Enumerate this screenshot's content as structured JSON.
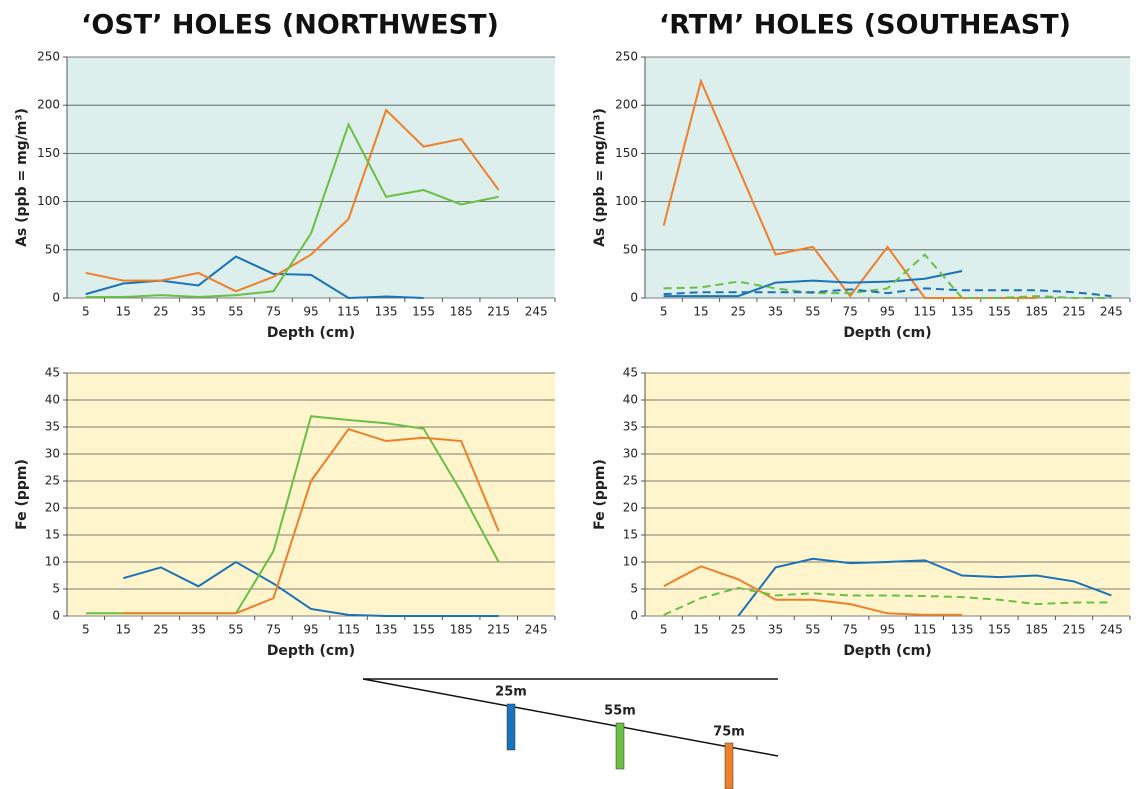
{
  "chart_data": [
    {
      "type": "line",
      "title": "‘OST’ HOLES (NORTHWEST)",
      "y_label": "As (ppb = mg/m³)",
      "x_label": "Depth (cm)",
      "background": "#dcefec",
      "grid": true,
      "categories": [
        "5",
        "15",
        "25",
        "35",
        "55",
        "75",
        "95",
        "115",
        "135",
        "155",
        "185",
        "215",
        "245"
      ],
      "ylim": [
        0,
        250
      ],
      "yticks": [
        0,
        50,
        100,
        150,
        200,
        250
      ],
      "series": [
        {
          "color": "#1a73b8",
          "values": [
            4,
            15,
            18,
            13,
            43,
            25,
            24,
            0,
            1.5,
            0,
            null,
            null,
            null
          ]
        },
        {
          "color": "#f07f2a",
          "values": [
            26,
            18,
            18,
            26,
            7,
            22,
            45,
            82,
            195,
            157,
            165,
            112,
            null
          ]
        },
        {
          "color": "#6bbf44",
          "values": [
            1,
            1,
            3,
            1,
            3,
            7,
            67,
            180,
            105,
            112,
            97,
            105,
            null
          ]
        }
      ]
    },
    {
      "type": "line",
      "title": "‘RTM’ HOLES (SOUTHEAST)",
      "y_label": "As (ppb = mg/m³)",
      "x_label": "Depth (cm)",
      "background": "#dcefec",
      "grid": true,
      "categories": [
        "5",
        "15",
        "25",
        "35",
        "55",
        "75",
        "95",
        "115",
        "135",
        "155",
        "185",
        "215",
        "245"
      ],
      "ylim": [
        0,
        250
      ],
      "yticks": [
        0,
        50,
        100,
        150,
        200,
        250
      ],
      "series": [
        {
          "color": "#f07f2a",
          "values": [
            75,
            225,
            135,
            45,
            53,
            2,
            53,
            0,
            0,
            0,
            0,
            null,
            null
          ]
        },
        {
          "color": "#1a73b8",
          "values": [
            2,
            2,
            2,
            16,
            18,
            16,
            17,
            20,
            28,
            null,
            null,
            null,
            null
          ]
        },
        {
          "color": "#6bbf44",
          "dashed": true,
          "values": [
            10,
            11,
            17,
            10,
            5,
            5,
            10,
            45,
            0,
            0,
            2,
            0,
            0
          ]
        },
        {
          "color": "#1a73b8",
          "dashed": true,
          "values": [
            4,
            6,
            6,
            6,
            6,
            9,
            5,
            10,
            8,
            8,
            8,
            6,
            2
          ]
        }
      ]
    },
    {
      "type": "line",
      "y_label": "Fe (ppm)",
      "x_label": "Depth (cm)",
      "background": "#fff5cc",
      "grid": true,
      "categories": [
        "5",
        "15",
        "25",
        "35",
        "55",
        "75",
        "95",
        "115",
        "135",
        "155",
        "185",
        "215",
        "245"
      ],
      "ylim": [
        0,
        45
      ],
      "yticks": [
        0,
        5,
        10,
        15,
        20,
        25,
        30,
        35,
        40,
        45
      ],
      "series": [
        {
          "color": "#1a73b8",
          "values": [
            null,
            7,
            9,
            5.5,
            10,
            6,
            1.3,
            0.2,
            0,
            0,
            0,
            0,
            null
          ]
        },
        {
          "color": "#6bbf44",
          "values": [
            0.5,
            0.5,
            0.5,
            0.5,
            0.5,
            12,
            37,
            36.3,
            35.7,
            34.7,
            23,
            10,
            null
          ]
        },
        {
          "color": "#f07f2a",
          "values": [
            null,
            0.5,
            0.5,
            0.5,
            0.5,
            3.3,
            25,
            34.6,
            32.4,
            33,
            32.4,
            15.7,
            null
          ]
        }
      ]
    },
    {
      "type": "line",
      "y_label": "Fe (ppm)",
      "x_label": "Depth (cm)",
      "background": "#fff5cc",
      "grid": true,
      "categories": [
        "5",
        "15",
        "25",
        "35",
        "55",
        "75",
        "95",
        "115",
        "135",
        "155",
        "185",
        "215",
        "245"
      ],
      "ylim": [
        0,
        45
      ],
      "yticks": [
        0,
        5,
        10,
        15,
        20,
        25,
        30,
        35,
        40,
        45
      ],
      "series": [
        {
          "color": "#1a73b8",
          "values": [
            null,
            null,
            0,
            9,
            10.6,
            9.8,
            10,
            10.3,
            7.5,
            7.2,
            7.5,
            6.4,
            3.8
          ]
        },
        {
          "color": "#f07f2a",
          "values": [
            5.5,
            9.2,
            6.8,
            3,
            3,
            2.2,
            0.5,
            0.2,
            0.2,
            null,
            null,
            null,
            null
          ]
        },
        {
          "color": "#6bbf44",
          "dashed": true,
          "values": [
            0.2,
            3.3,
            5.2,
            3.8,
            4.2,
            3.8,
            3.8,
            3.7,
            3.5,
            3,
            2.2,
            2.5,
            2.5
          ]
        }
      ]
    }
  ],
  "diagram": {
    "labels": [
      "25m",
      "55m",
      "75m"
    ]
  }
}
